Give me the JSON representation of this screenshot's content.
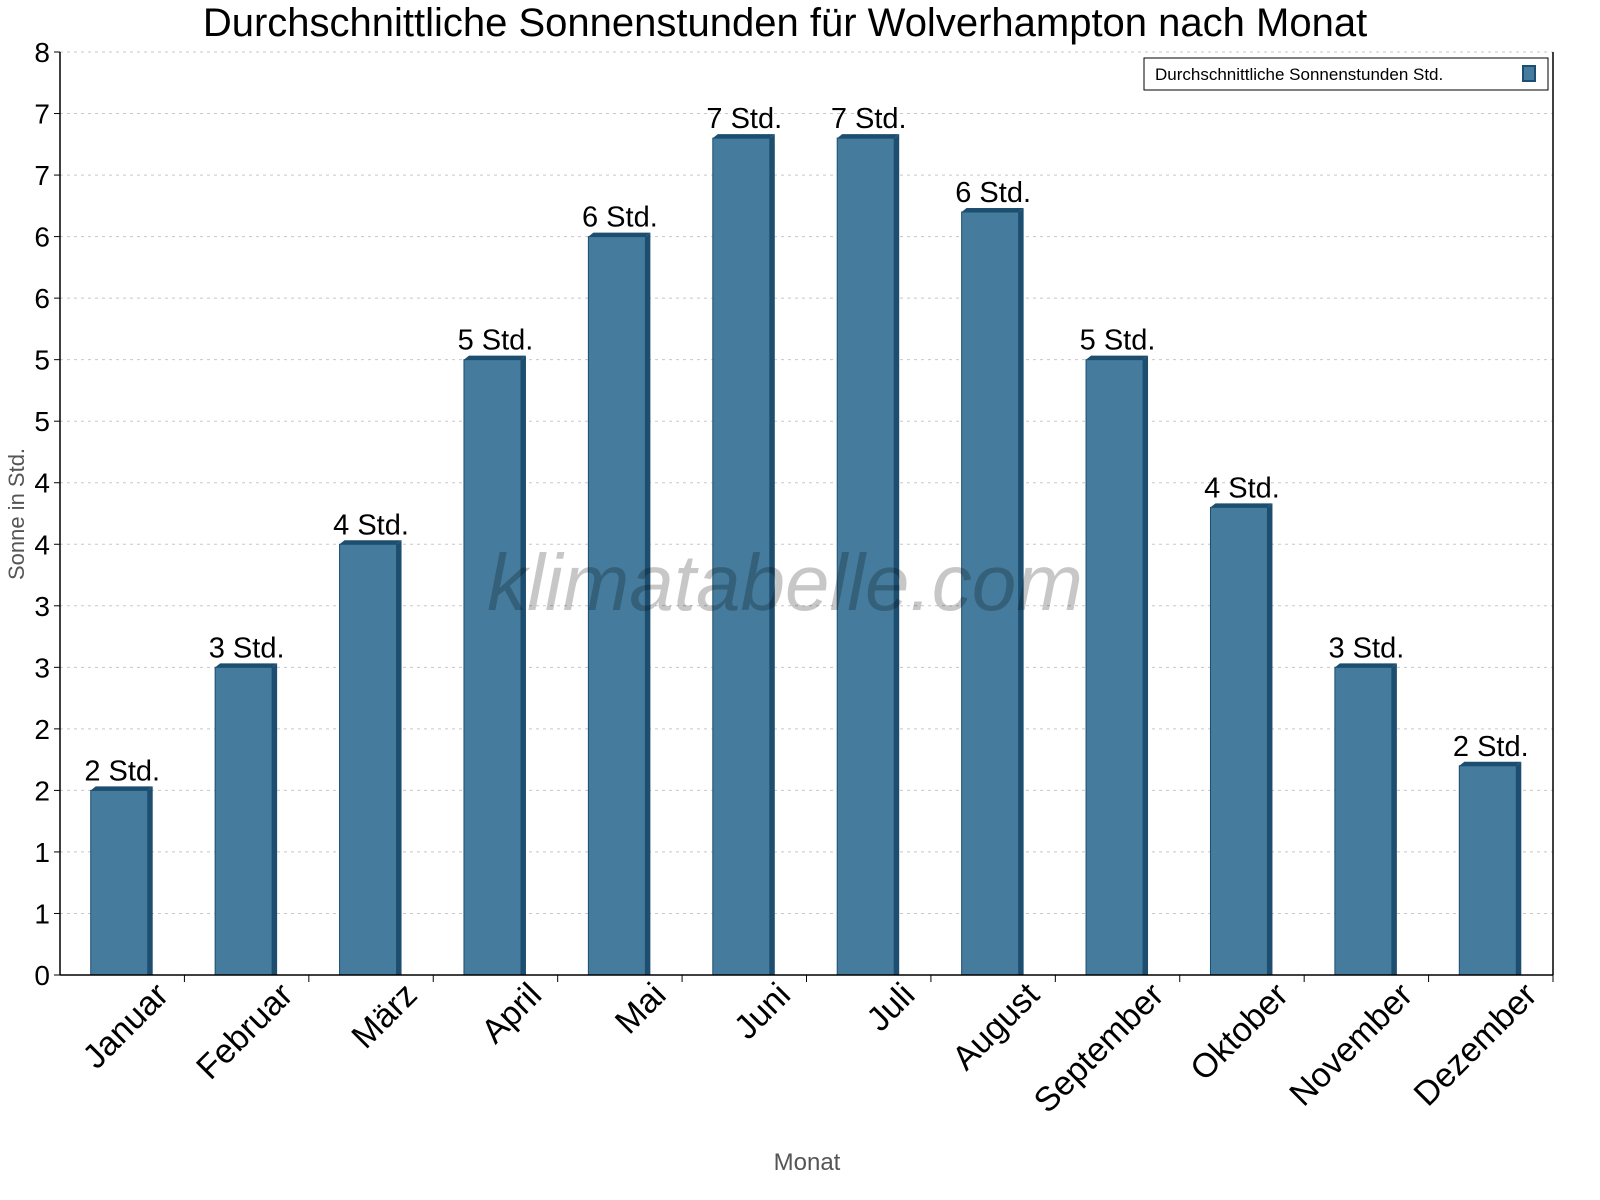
{
  "chart_data": {
    "type": "bar",
    "title": "Durchschnittliche Sonnenstunden für Wolverhampton nach Monat",
    "xlabel": "Monat",
    "ylabel": "Sonne in Std.",
    "categories": [
      "Januar",
      "Februar",
      "März",
      "April",
      "Mai",
      "Juni",
      "Juli",
      "August",
      "September",
      "Oktober",
      "November",
      "Dezember"
    ],
    "series": [
      {
        "name": "Durchschnittliche Sonnenstunden Std.",
        "values": [
          1.5,
          2.5,
          3.5,
          5.0,
          6.0,
          6.8,
          6.8,
          6.2,
          5.0,
          3.8,
          2.5,
          1.7
        ],
        "labels": [
          "2 Std.",
          "3 Std.",
          "4 Std.",
          "5 Std.",
          "6 Std.",
          "7 Std.",
          "7 Std.",
          "6 Std.",
          "5 Std.",
          "4 Std.",
          "3 Std.",
          "2 Std."
        ]
      }
    ],
    "ylim": [
      0,
      7.5
    ],
    "ytick_step": 0.5,
    "ytick_labels": [
      "0",
      "1",
      "1",
      "2",
      "2",
      "3",
      "3",
      "4",
      "4",
      "5",
      "5",
      "6",
      "6",
      "7",
      "7",
      "8"
    ],
    "grid": true,
    "legend_position": "top-right",
    "colors": {
      "bar": "#457b9d",
      "bar_side": "#1d4e6f",
      "grid": "#c8c8c8"
    },
    "watermark": "klimatabelle.com"
  }
}
